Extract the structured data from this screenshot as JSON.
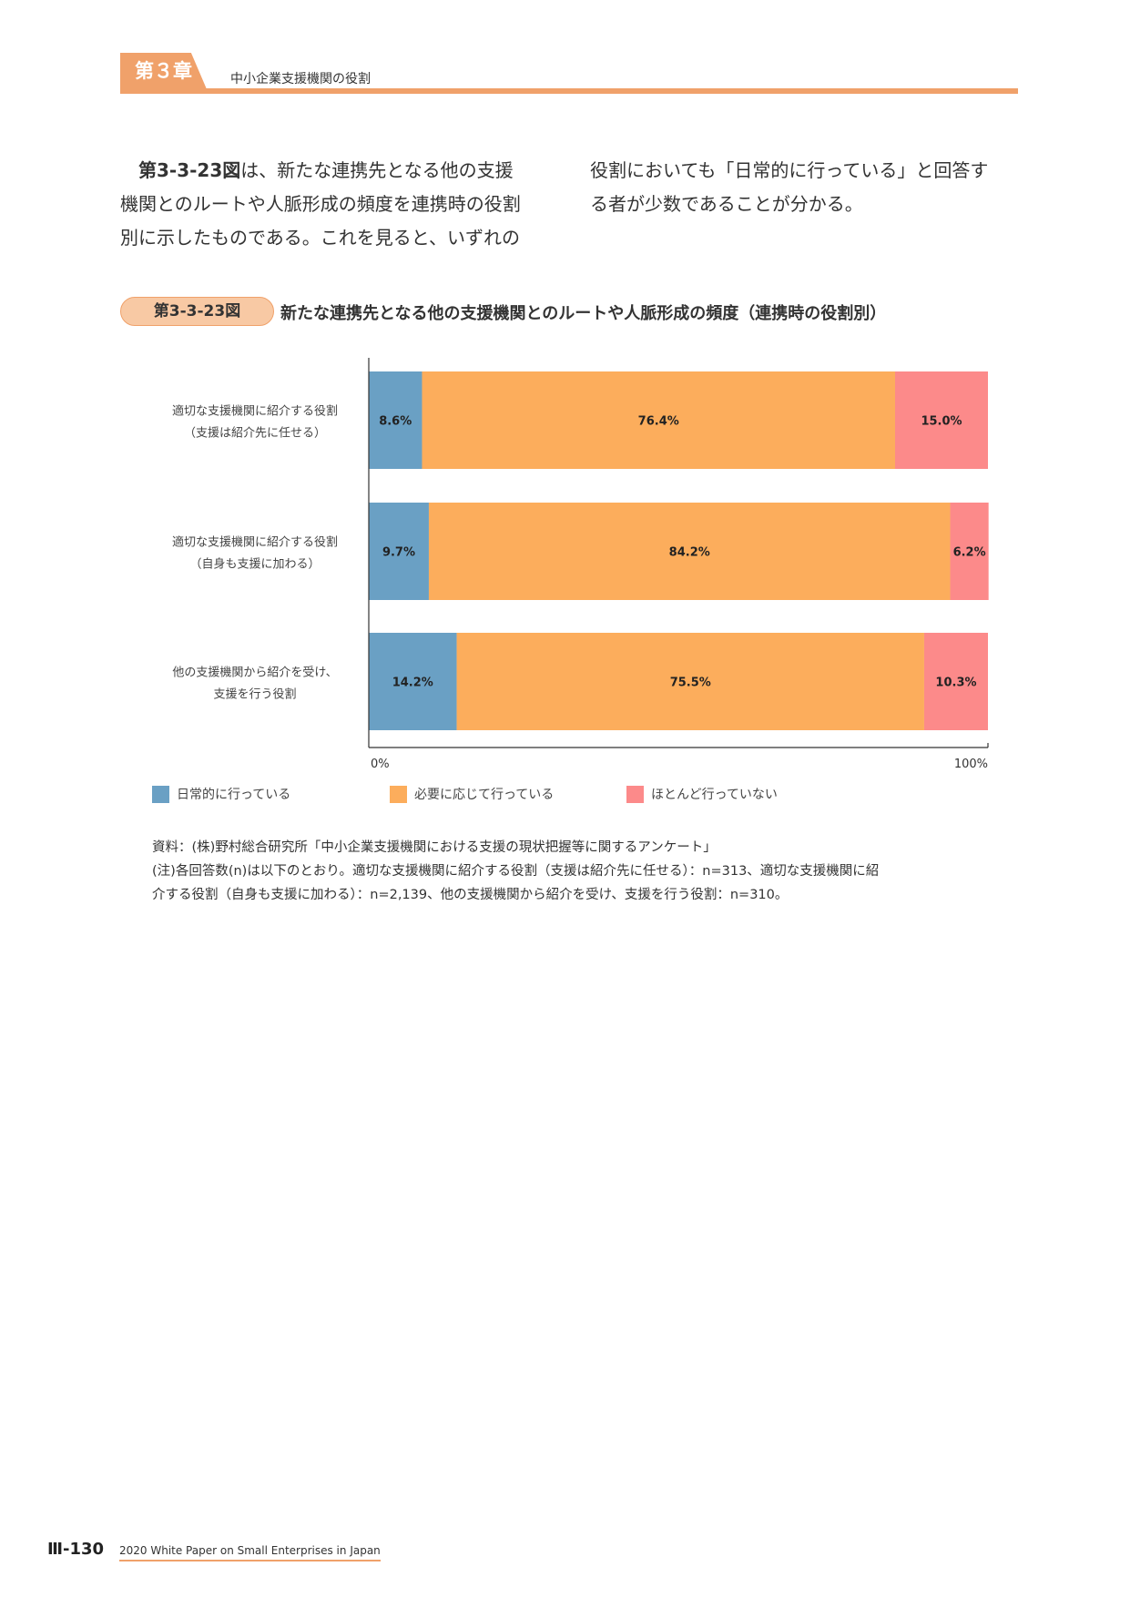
{
  "header": {
    "chapter_label": "第３章",
    "chapter_title": "中小企業支援機関の役割"
  },
  "body": {
    "col1_lead": "第3-3-23図",
    "col1_line1_rest": "は、新たな連携先となる他の支援",
    "col1_line2": "機関とのルートや人脈形成の頻度を連携時の役割",
    "col1_line3": "別に示したものである。これを見ると、いずれの",
    "col2_line1": "役割においても「日常的に行っている」と回答す",
    "col2_line2": "る者が少数であることが分かる。"
  },
  "figure": {
    "badge": "第3-3-23図",
    "title": "新たな連携先となる他の支援機関とのルートや人脈形成の頻度（連携時の役割別）"
  },
  "chart_data": {
    "type": "bar",
    "orientation": "horizontal",
    "stacked": true,
    "categories": [
      [
        "適切な支援機関に紹介する役割",
        "（支援は紹介先に任せる）"
      ],
      [
        "適切な支援機関に紹介する役割",
        "（自身も支援に加わる）"
      ],
      [
        "他の支援機関から紹介を受け、",
        "支援を行う役割"
      ]
    ],
    "series": [
      {
        "name": "日常的に行っている",
        "values": [
          8.6,
          9.7,
          14.2
        ],
        "color": "#6aa0c4"
      },
      {
        "name": "必要に応じて行っている",
        "values": [
          76.4,
          84.2,
          75.5
        ],
        "color": "#fcad5c"
      },
      {
        "name": "ほとんど行っていない",
        "values": [
          15.0,
          6.2,
          10.3
        ],
        "color": "#fc8a8a"
      }
    ],
    "xlim": [
      0,
      100
    ],
    "xticks": [
      "0%",
      "100%"
    ],
    "legend_position": "bottom",
    "grid": false
  },
  "notes": {
    "source": "資料：(株)野村総合研究所「中小企業支援機関における支援の現状把握等に関するアンケート」",
    "note_line1": "(注)各回答数(n)は以下のとおり。適切な支援機関に紹介する役割（支援は紹介先に任せる）：n=313、適切な支援機関に紹",
    "note_line2": "介する役割（自身も支援に加わる）：n=2,139、他の支援機関から紹介を受け、支援を行う役割：n=310。"
  },
  "footer": {
    "page": "Ⅲ-130",
    "publication": "2020 White Paper on Small Enterprises in Japan"
  }
}
